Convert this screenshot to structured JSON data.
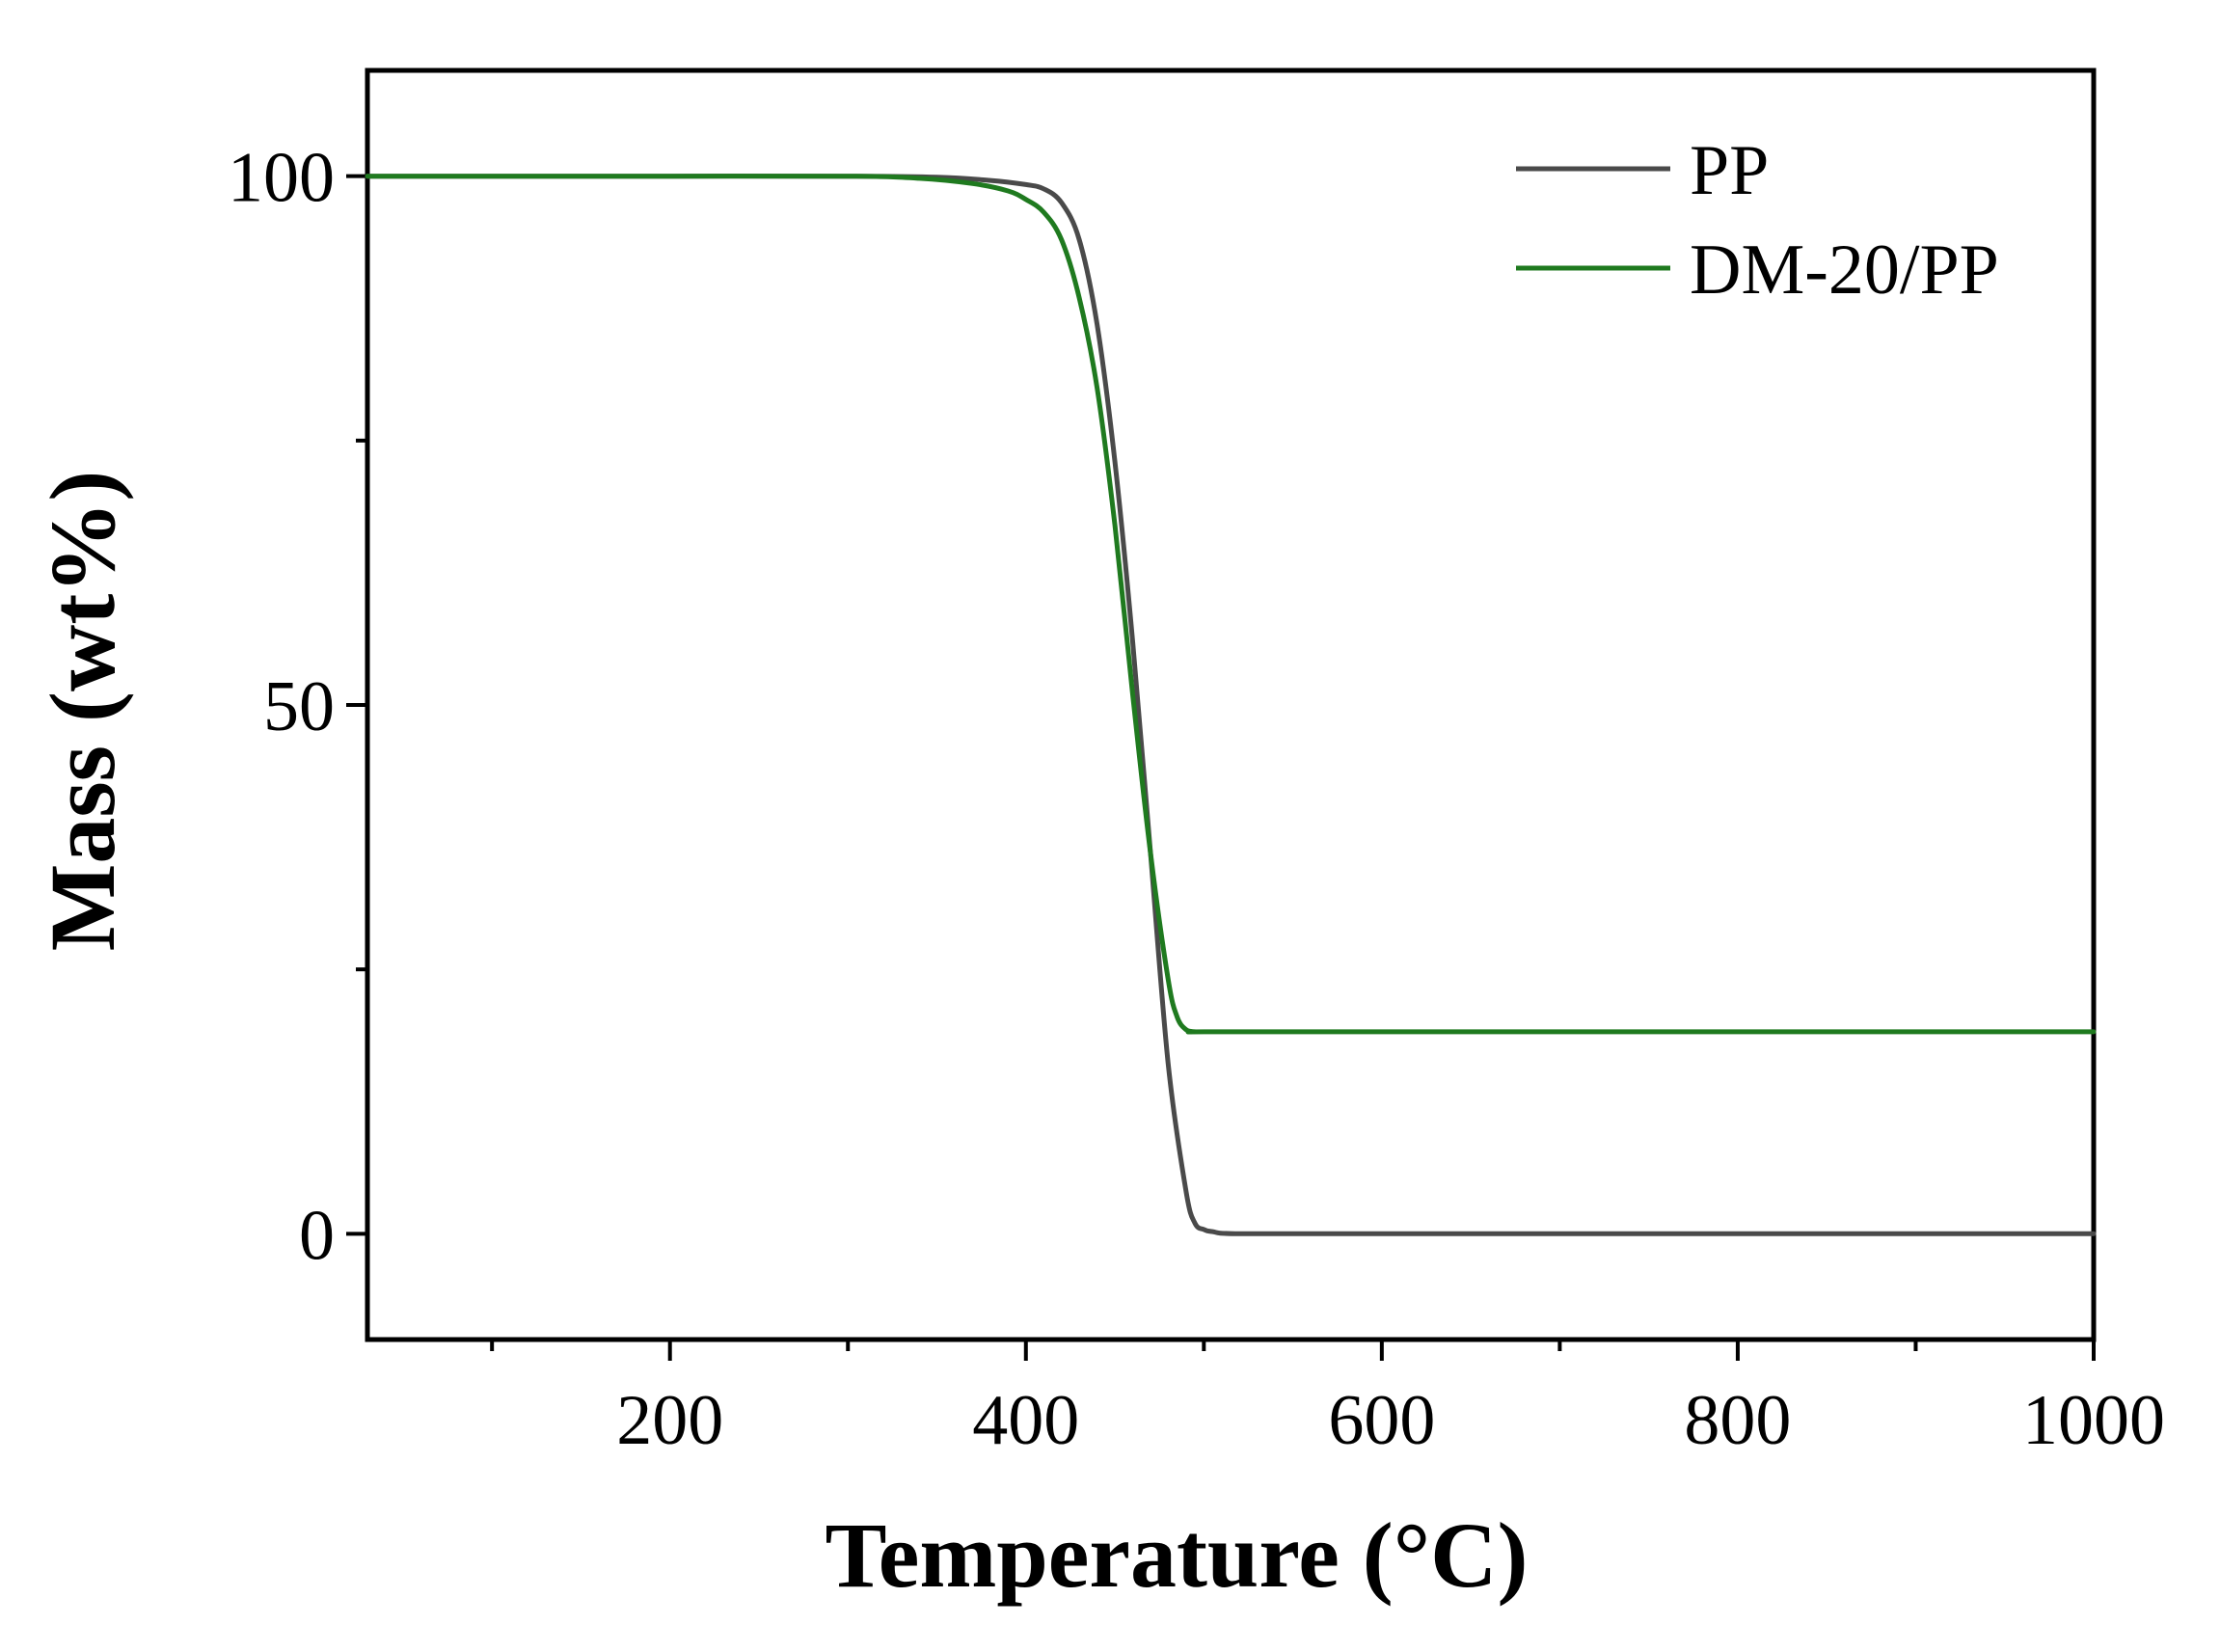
{
  "chart_data": {
    "type": "line",
    "title": "",
    "xlabel": "Temperature (°C)",
    "ylabel": "Mass (wt%)",
    "xlim": [
      30,
      1000
    ],
    "ylim": [
      -10,
      110
    ],
    "x_ticks": [
      200,
      400,
      600,
      800,
      1000
    ],
    "x_minor_ticks": [
      100,
      300,
      500,
      700,
      900
    ],
    "y_ticks": [
      0,
      50,
      100
    ],
    "y_minor_ticks": [
      25,
      75
    ],
    "grid": false,
    "legend_position": "top-right",
    "series": [
      {
        "name": "PP",
        "color": "#4a4a4a",
        "x": [
          30,
          100,
          200,
          300,
          350,
          380,
          400,
          410,
          420,
          430,
          440,
          450,
          460,
          470,
          480,
          490,
          495,
          500,
          505,
          520,
          600,
          800,
          1000
        ],
        "y": [
          100,
          100,
          100,
          100,
          99.9,
          99.6,
          99.2,
          98.8,
          97.5,
          94,
          86,
          73,
          56,
          36,
          16,
          4,
          1,
          0.4,
          0.2,
          0,
          0,
          0,
          0
        ]
      },
      {
        "name": "DM-20/PP",
        "color": "#1f7a1f",
        "x": [
          30,
          100,
          200,
          300,
          340,
          370,
          390,
          400,
          410,
          420,
          430,
          440,
          450,
          460,
          470,
          480,
          485,
          490,
          495,
          500,
          600,
          800,
          1000
        ],
        "y": [
          100,
          100,
          100,
          100,
          99.8,
          99.3,
          98.6,
          97.8,
          96.6,
          94,
          88.5,
          80,
          67,
          51,
          36,
          24,
          20.5,
          19.3,
          19.1,
          19.1,
          19.1,
          19.1,
          19.1
        ]
      }
    ]
  }
}
